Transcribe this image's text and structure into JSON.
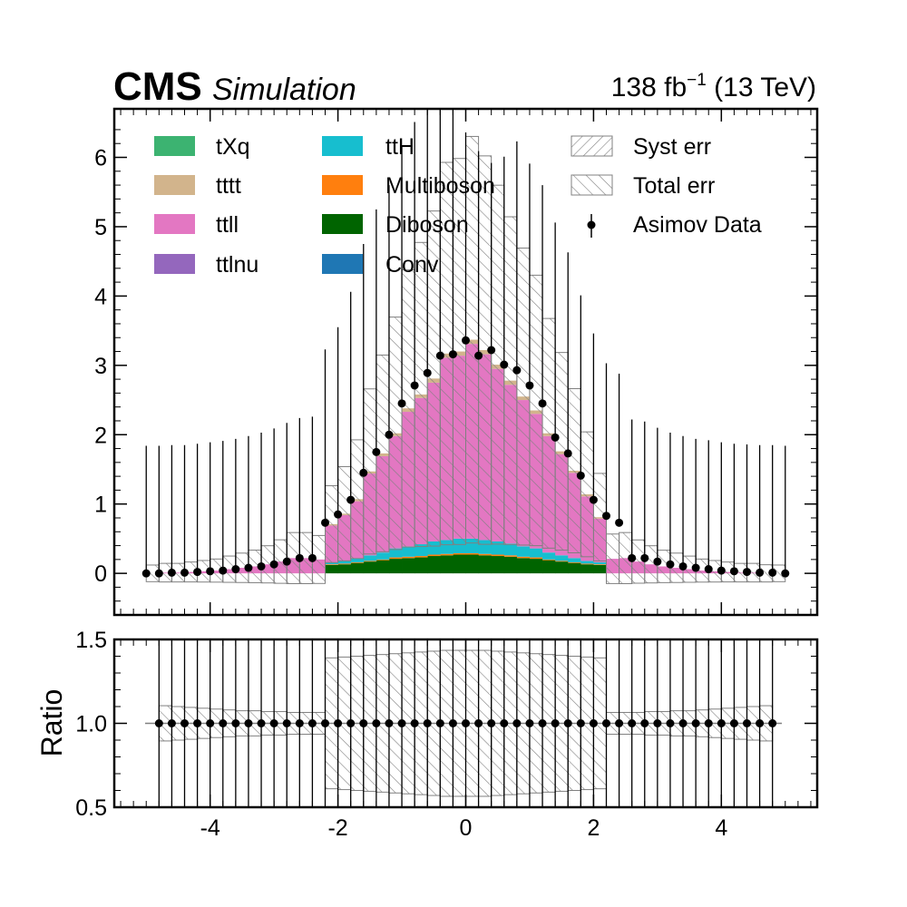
{
  "header": {
    "experiment": "CMS",
    "status": "Simulation",
    "lumi_prefix": "138 fb",
    "lumi_exp": "−1",
    "lumi_suffix": " (13 TeV)"
  },
  "colors": {
    "tXq": "#3cb371",
    "tttt": "#d2b48c",
    "ttll": "#e377c2",
    "ttlnu": "#9467bd",
    "ttH": "#17becf",
    "Multiboson": "#ff7f0e",
    "Diboson": "#006400",
    "Conv": "#1f77b4",
    "hatch": "#808080",
    "data": "#000000"
  },
  "legend": {
    "col1": [
      "tXq",
      "tttt",
      "ttll",
      "ttlnu"
    ],
    "col2": [
      "ttH",
      "Multiboson",
      "Diboson",
      "Conv"
    ],
    "syst": "Syst err",
    "total": "Total err",
    "data": "Asimov Data"
  },
  "chart_data": [
    {
      "type": "bar",
      "subtype": "stacked-histogram",
      "xlim": [
        -5.5,
        5.5
      ],
      "ylim": [
        -0.6,
        6.7
      ],
      "yticks": [
        0,
        1,
        2,
        3,
        4,
        5,
        6
      ],
      "bin_edges": [
        -5,
        -4.8,
        -4.6,
        -4.4,
        -4.2,
        -4,
        -3.8,
        -3.6,
        -3.4,
        -3.2,
        -3,
        -2.8,
        -2.6,
        -2.4,
        -2.2,
        -2,
        -1.8,
        -1.6,
        -1.4,
        -1.2,
        -1,
        -0.8,
        -0.6,
        -0.4,
        -0.2,
        0,
        0.2,
        0.4,
        0.6,
        0.8,
        1,
        1.2,
        1.4,
        1.6,
        1.8,
        2,
        2.2,
        2.4,
        2.6,
        2.8,
        3,
        3.2,
        3.4,
        3.6,
        3.8,
        4,
        4.2,
        4.4,
        4.6,
        4.8,
        5
      ],
      "series": [
        {
          "name": "Conv",
          "values": [
            0,
            0,
            0,
            0,
            0,
            0,
            0,
            0,
            0,
            0,
            0,
            0,
            0,
            0,
            0,
            0,
            0,
            0,
            0,
            0,
            0,
            0,
            0,
            0,
            0,
            0,
            0,
            0,
            0,
            0,
            0,
            0,
            0,
            0,
            0,
            0,
            0,
            0,
            0,
            0,
            0,
            0,
            0,
            0,
            0,
            0,
            0,
            0,
            0,
            0
          ]
        },
        {
          "name": "Diboson",
          "values": [
            0,
            0,
            0,
            0,
            0,
            0,
            0,
            0,
            0,
            0,
            0,
            0,
            0,
            0,
            0.12,
            0.13,
            0.15,
            0.17,
            0.19,
            0.21,
            0.22,
            0.23,
            0.25,
            0.26,
            0.27,
            0.27,
            0.26,
            0.25,
            0.24,
            0.22,
            0.21,
            0.19,
            0.17,
            0.15,
            0.13,
            0.12,
            0,
            0,
            0,
            0,
            0,
            0,
            0,
            0,
            0,
            0,
            0,
            0,
            0,
            0
          ]
        },
        {
          "name": "Multiboson",
          "values": [
            0,
            0,
            0,
            0,
            0,
            0,
            0,
            0,
            0,
            0,
            0,
            0,
            0,
            0,
            0.01,
            0.01,
            0.01,
            0.01,
            0.01,
            0.02,
            0.02,
            0.02,
            0.02,
            0.02,
            0.02,
            0.02,
            0.02,
            0.02,
            0.02,
            0.02,
            0.02,
            0.01,
            0.01,
            0.01,
            0.01,
            0.01,
            0,
            0,
            0,
            0,
            0,
            0,
            0,
            0,
            0,
            0,
            0,
            0,
            0,
            0
          ]
        },
        {
          "name": "ttH",
          "values": [
            0,
            0,
            0,
            0,
            0,
            0,
            0,
            0,
            0,
            0,
            0,
            0,
            0,
            0,
            0.03,
            0.04,
            0.06,
            0.08,
            0.1,
            0.13,
            0.15,
            0.17,
            0.19,
            0.2,
            0.21,
            0.21,
            0.2,
            0.19,
            0.17,
            0.15,
            0.13,
            0.1,
            0.08,
            0.06,
            0.04,
            0.03,
            0,
            0,
            0,
            0,
            0,
            0,
            0,
            0,
            0,
            0,
            0,
            0,
            0,
            0
          ]
        },
        {
          "name": "ttlnu",
          "values": [
            0,
            0,
            0,
            0,
            0,
            0,
            0,
            0,
            0,
            0,
            0,
            0,
            0,
            0,
            0,
            0,
            0,
            0,
            0,
            0,
            0,
            0,
            0,
            0,
            0,
            0,
            0,
            0,
            0,
            0,
            0,
            0,
            0,
            0,
            0,
            0,
            0,
            0,
            0,
            0,
            0,
            0,
            0,
            0,
            0,
            0,
            0,
            0,
            0,
            0
          ]
        },
        {
          "name": "ttll",
          "values": [
            0,
            0.01,
            0.01,
            0.02,
            0.03,
            0.04,
            0.06,
            0.08,
            0.1,
            0.13,
            0.17,
            0.22,
            0.22,
            0.2,
            0.53,
            0.66,
            0.82,
            1.18,
            1.39,
            1.62,
            1.94,
            2.11,
            2.29,
            2.63,
            2.64,
            2.81,
            2.68,
            2.49,
            2.29,
            2.11,
            1.94,
            1.68,
            1.46,
            1.23,
            0.93,
            0.63,
            0.21,
            0.22,
            0.17,
            0.13,
            0.1,
            0.08,
            0.06,
            0.04,
            0.03,
            0.02,
            0.01,
            0.01,
            0,
            0
          ]
        },
        {
          "name": "tttt",
          "values": [
            0,
            0,
            0,
            0,
            0,
            0,
            0,
            0,
            0,
            0,
            0,
            0,
            0,
            0,
            0.02,
            0.02,
            0.03,
            0.03,
            0.04,
            0.04,
            0.05,
            0.05,
            0.06,
            0.06,
            0.06,
            0.06,
            0.06,
            0.06,
            0.06,
            0.05,
            0.05,
            0.04,
            0.04,
            0.03,
            0.03,
            0.02,
            0,
            0,
            0,
            0,
            0,
            0,
            0,
            0,
            0,
            0,
            0,
            0,
            0,
            0
          ]
        },
        {
          "name": "tXq",
          "values": [
            0,
            0,
            0,
            0,
            0,
            0,
            0,
            0,
            0,
            0,
            0,
            0,
            0,
            0,
            0,
            0,
            0,
            0,
            0,
            0,
            0,
            0,
            0,
            0,
            0,
            0,
            0,
            0,
            0,
            0,
            0,
            0,
            0,
            0,
            0,
            0,
            0,
            0,
            0,
            0,
            0,
            0,
            0,
            0,
            0,
            0,
            0,
            0,
            0,
            0
          ]
        }
      ],
      "asimov_data": {
        "x": [
          -5,
          -4.8,
          -4.6,
          -4.4,
          -4.2,
          -4,
          -3.8,
          -3.6,
          -3.4,
          -3.2,
          -3,
          -2.8,
          -2.6,
          -2.4,
          -2.2,
          -2,
          -1.8,
          -1.6,
          -1.4,
          -1.2,
          -1,
          -0.8,
          -0.6,
          -0.4,
          -0.2,
          0,
          0.2,
          0.4,
          0.6,
          0.8,
          1,
          1.2,
          1.4,
          1.6,
          1.8,
          2,
          2.2,
          2.4,
          2.6,
          2.8,
          3,
          3.2,
          3.4,
          3.6,
          3.8,
          4,
          4.2,
          4.4,
          4.6,
          4.8,
          5
        ],
        "y": [
          0,
          0,
          0.01,
          0.01,
          0.02,
          0.03,
          0.04,
          0.06,
          0.08,
          0.1,
          0.13,
          0.17,
          0.22,
          0.22,
          0.73,
          0.85,
          1.06,
          1.45,
          1.75,
          2.0,
          2.45,
          2.71,
          2.89,
          3.14,
          3.16,
          3.36,
          3.14,
          3.22,
          3.01,
          2.93,
          2.71,
          2.45,
          1.96,
          1.73,
          1.41,
          1.06,
          0.83,
          0.73,
          0.22,
          0.22,
          0.17,
          0.13,
          0.1,
          0.08,
          0.06,
          0.04,
          0.03,
          0.02,
          0.01,
          0.01,
          0
        ],
        "err_hi": [
          1.84,
          1.84,
          1.84,
          1.84,
          1.85,
          1.86,
          1.87,
          1.88,
          1.9,
          1.93,
          1.96,
          2.0,
          2.02,
          2.04,
          2.5,
          2.7,
          3.0,
          3.3,
          3.5,
          3.6,
          3.7,
          3.8,
          3.9,
          3.95,
          3.97,
          3.0,
          2.95,
          2.7,
          3.0,
          3.3,
          3.2,
          3.15,
          3.1,
          2.9,
          2.6,
          2.4,
          2.2,
          2.15,
          2.0,
          1.97,
          1.93,
          1.9,
          1.88,
          1.86,
          1.86,
          1.85,
          1.84,
          1.84,
          1.84,
          1.84,
          1.84
        ]
      },
      "total_err_rel": [
        0,
        0.21,
        0.2,
        0.19,
        0.18,
        0.17,
        0.16,
        0.15,
        0.15,
        0.14,
        0.14,
        0.13,
        0.13,
        0.13,
        0.78,
        0.79,
        0.8,
        0.81,
        0.82,
        0.83,
        0.84,
        0.85,
        0.86,
        0.87,
        0.87,
        0.87,
        0.87,
        0.86,
        0.85,
        0.84,
        0.83,
        0.82,
        0.81,
        0.8,
        0.79,
        0.78,
        0.13,
        0.13,
        0.13,
        0.14,
        0.14,
        0.15,
        0.15,
        0.16,
        0.17,
        0.18,
        0.19,
        0.2,
        0.21,
        0
      ]
    },
    {
      "type": "line",
      "subtype": "ratio",
      "ylabel": "Ratio",
      "xlim": [
        -5.5,
        5.5
      ],
      "ylim": [
        0.5,
        1.5
      ],
      "xticks": [
        -4,
        -2,
        0,
        2,
        4
      ],
      "yticks": [
        "0.5",
        "1.0",
        "1.5"
      ],
      "ratio_points": {
        "x": [
          -4.8,
          -4.6,
          -4.4,
          -4.2,
          -4,
          -3.8,
          -3.6,
          -3.4,
          -3.2,
          -3,
          -2.8,
          -2.6,
          -2.4,
          -2.2,
          -2,
          -1.8,
          -1.6,
          -1.4,
          -1.2,
          -1,
          -0.8,
          -0.6,
          -0.4,
          -0.2,
          0,
          0.2,
          0.4,
          0.6,
          0.8,
          1,
          1.2,
          1.4,
          1.6,
          1.8,
          2,
          2.2,
          2.4,
          2.6,
          2.8,
          3,
          3.2,
          3.4,
          3.6,
          3.8,
          4,
          4.2,
          4.4,
          4.6,
          4.8
        ],
        "y": 1.0
      },
      "unit_line": 1.0
    }
  ],
  "x_tick_labels": [
    "-4",
    "-2",
    "0",
    "2",
    "4"
  ],
  "y_tick_labels_main": [
    "0",
    "1",
    "2",
    "3",
    "4",
    "5",
    "6"
  ],
  "y_tick_labels_ratio": [
    "0.5",
    "1.0",
    "1.5"
  ]
}
